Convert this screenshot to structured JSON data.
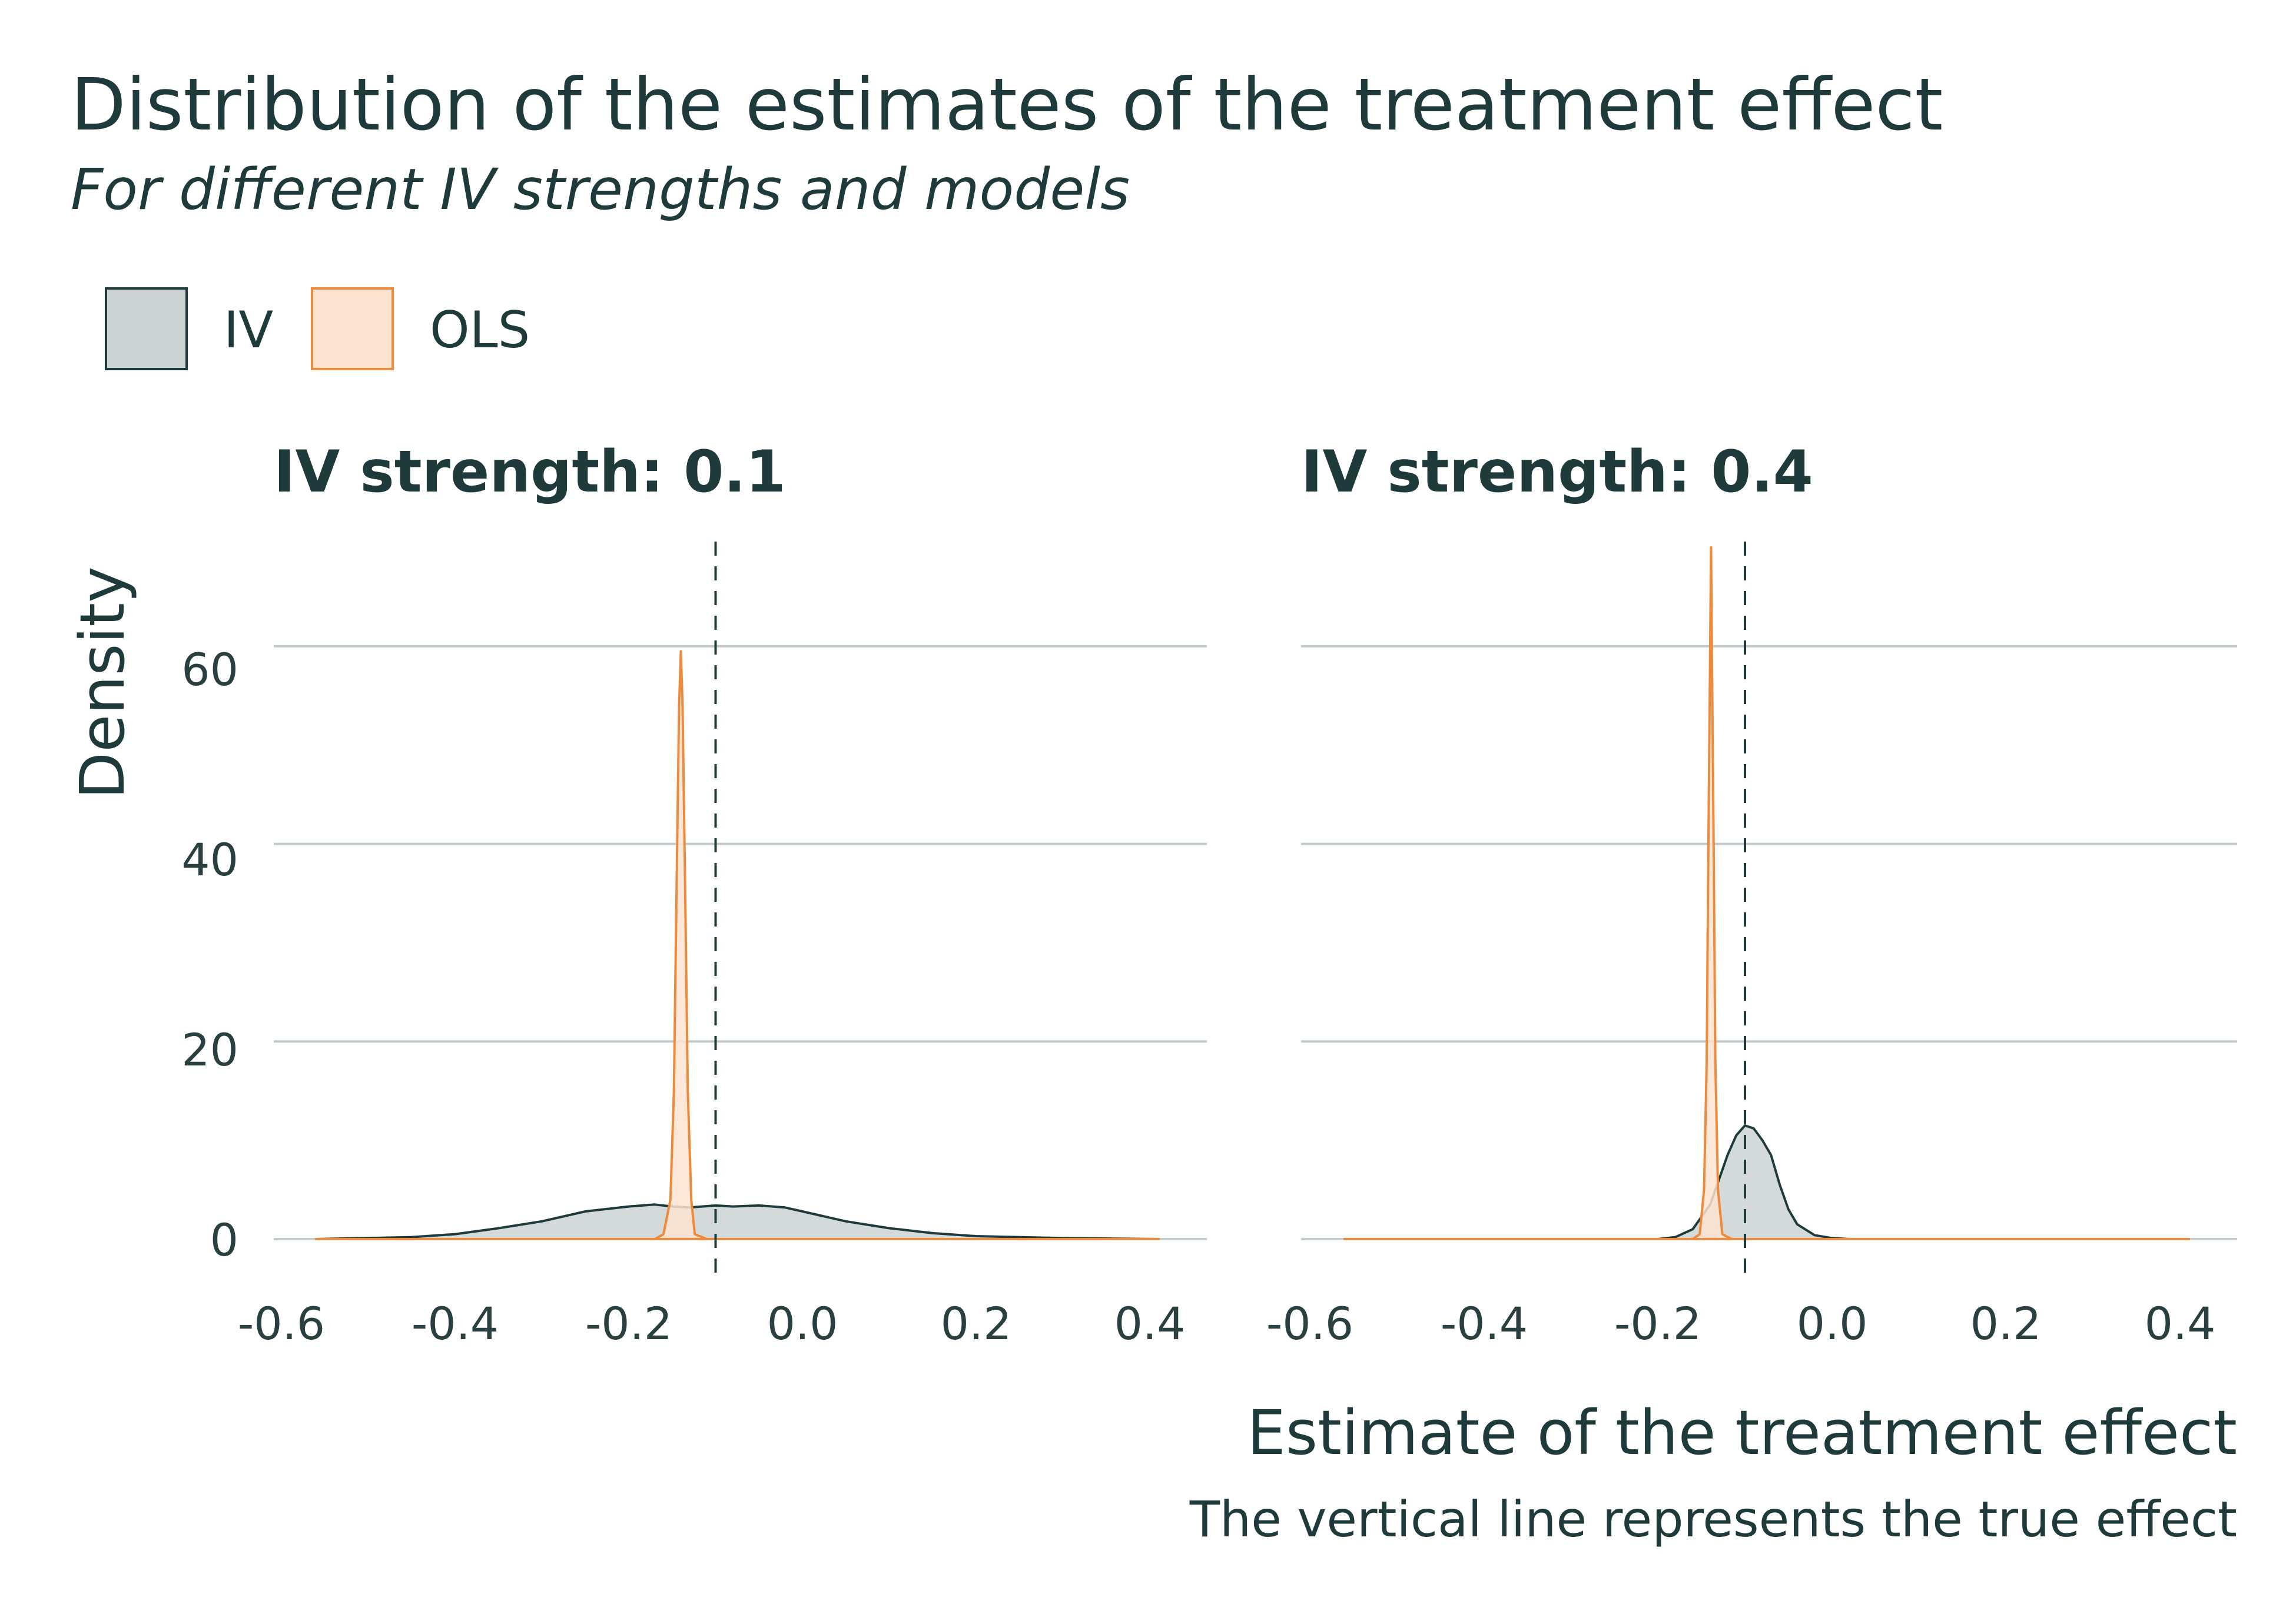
{
  "chart_data": {
    "type": "area",
    "title": "Distribution of the estimates of the treatment effect",
    "subtitle": "For different IV strengths and models",
    "xlabel": "Estimate of the treatment effect",
    "ylabel": "Density",
    "caption": "The vertical line represents the true effect",
    "xlim": [
      -0.6,
      0.4
    ],
    "ylim": [
      0,
      70
    ],
    "x_ticks": [
      "-0.6",
      "-0.4",
      "-0.2",
      "0.0",
      "0.2",
      "0.4"
    ],
    "x_tick_values": [
      -0.6,
      -0.4,
      -0.2,
      0.0,
      0.2,
      0.4
    ],
    "y_ticks": [
      "0",
      "20",
      "40",
      "60"
    ],
    "y_tick_values": [
      0,
      20,
      40,
      60
    ],
    "grid": "horizontal major",
    "legend": {
      "position": "top-left",
      "entries": [
        {
          "label": "IV",
          "fill": "#cdd3d3",
          "stroke": "#1f3a3a"
        },
        {
          "label": "OLS",
          "fill": "#fde3d1",
          "stroke": "#ee8a3c"
        }
      ]
    },
    "true_effect": -0.1,
    "facets": [
      {
        "title": "IV strength: 0.1",
        "series": [
          {
            "name": "IV",
            "points": [
              [
                -0.56,
                0
              ],
              [
                -0.45,
                0.2
              ],
              [
                -0.4,
                0.5
              ],
              [
                -0.35,
                1.1
              ],
              [
                -0.3,
                1.8
              ],
              [
                -0.25,
                2.8
              ],
              [
                -0.2,
                3.3
              ],
              [
                -0.17,
                3.5
              ],
              [
                -0.15,
                3.3
              ],
              [
                -0.13,
                3.2
              ],
              [
                -0.1,
                3.4
              ],
              [
                -0.08,
                3.3
              ],
              [
                -0.05,
                3.4
              ],
              [
                -0.02,
                3.2
              ],
              [
                0.0,
                2.8
              ],
              [
                0.05,
                1.8
              ],
              [
                0.1,
                1.1
              ],
              [
                0.15,
                0.6
              ],
              [
                0.2,
                0.3
              ],
              [
                0.3,
                0.1
              ],
              [
                0.41,
                0
              ]
            ]
          },
          {
            "name": "OLS",
            "points": [
              [
                -0.56,
                0
              ],
              [
                -0.17,
                0
              ],
              [
                -0.16,
                0.5
              ],
              [
                -0.152,
                4
              ],
              [
                -0.148,
                15
              ],
              [
                -0.145,
                35
              ],
              [
                -0.142,
                54
              ],
              [
                -0.14,
                59.5
              ],
              [
                -0.138,
                54
              ],
              [
                -0.135,
                35
              ],
              [
                -0.132,
                15
              ],
              [
                -0.128,
                4
              ],
              [
                -0.124,
                0.5
              ],
              [
                -0.11,
                0
              ],
              [
                0.41,
                0
              ]
            ]
          }
        ]
      },
      {
        "title": "IV strength: 0.4",
        "series": [
          {
            "name": "IV",
            "points": [
              [
                -0.56,
                0
              ],
              [
                -0.2,
                0
              ],
              [
                -0.18,
                0.2
              ],
              [
                -0.16,
                1
              ],
              [
                -0.14,
                3.5
              ],
              [
                -0.13,
                6
              ],
              [
                -0.12,
                8.5
              ],
              [
                -0.11,
                10.5
              ],
              [
                -0.1,
                11.5
              ],
              [
                -0.09,
                11.2
              ],
              [
                -0.08,
                10
              ],
              [
                -0.07,
                8.5
              ],
              [
                -0.06,
                5.5
              ],
              [
                -0.05,
                3
              ],
              [
                -0.04,
                1.5
              ],
              [
                -0.02,
                0.4
              ],
              [
                0.0,
                0.1
              ],
              [
                0.02,
                0
              ],
              [
                0.41,
                0
              ]
            ]
          },
          {
            "name": "OLS",
            "points": [
              [
                -0.56,
                0
              ],
              [
                -0.16,
                0
              ],
              [
                -0.152,
                0.5
              ],
              [
                -0.147,
                5
              ],
              [
                -0.144,
                18
              ],
              [
                -0.142,
                40
              ],
              [
                -0.14,
                60
              ],
              [
                -0.139,
                70
              ],
              [
                -0.138,
                60
              ],
              [
                -0.136,
                40
              ],
              [
                -0.134,
                18
              ],
              [
                -0.131,
                5
              ],
              [
                -0.126,
                0.5
              ],
              [
                -0.115,
                0
              ],
              [
                0.41,
                0
              ]
            ]
          }
        ]
      }
    ]
  }
}
